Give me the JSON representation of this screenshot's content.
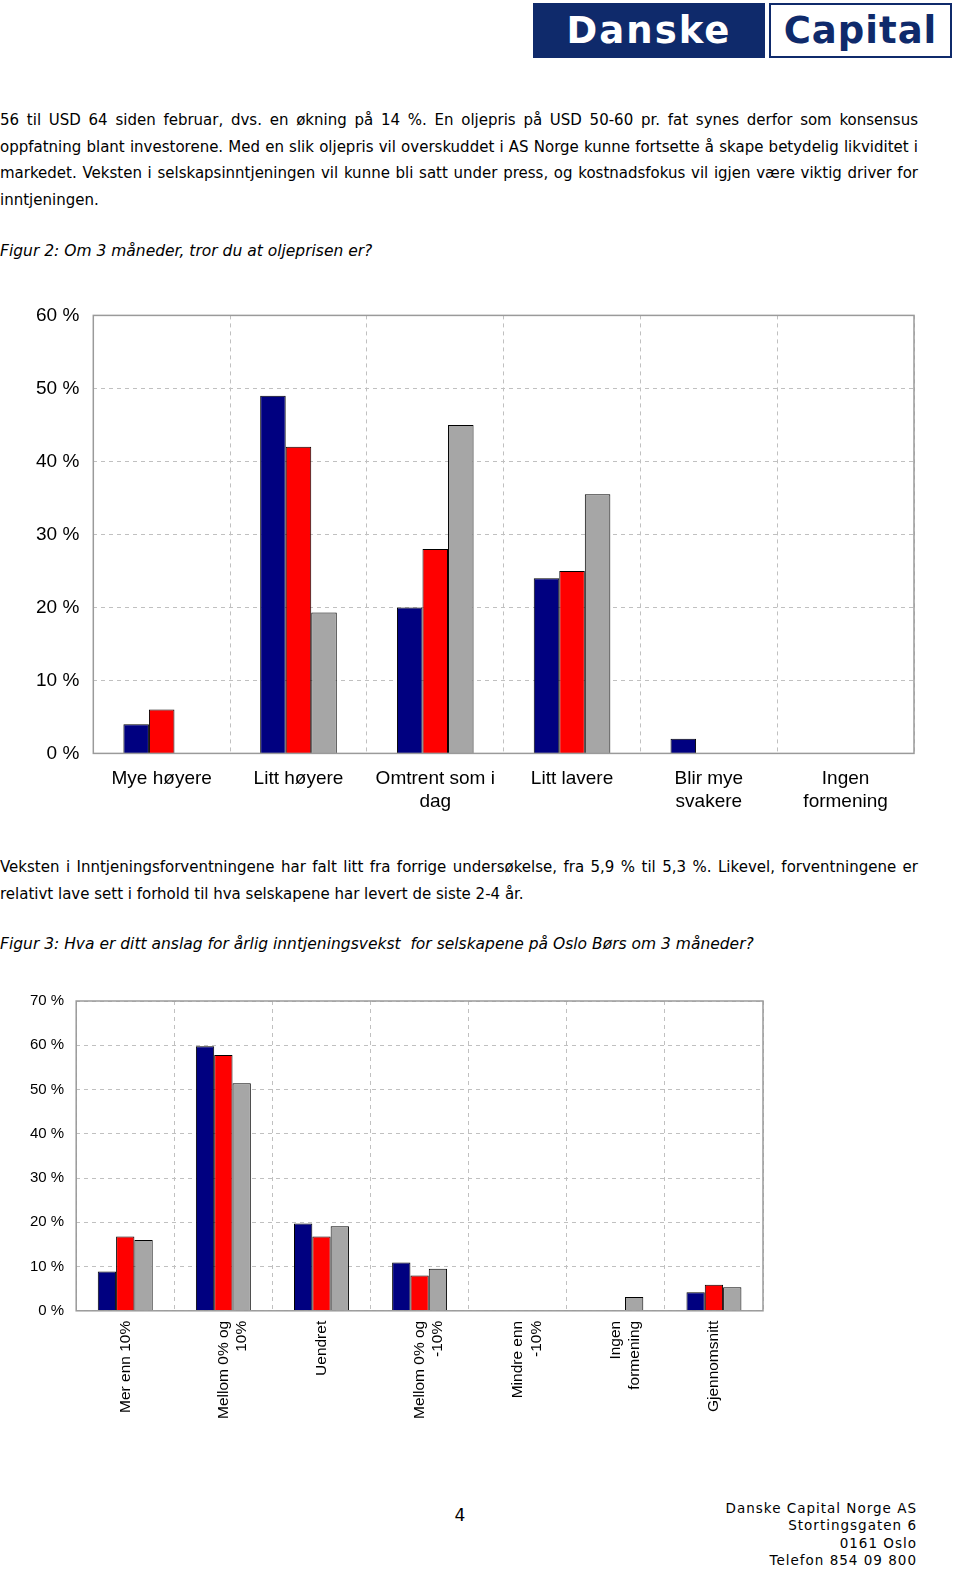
{
  "header": {
    "logo": [
      "Danske",
      "Capital"
    ]
  },
  "paragraphs": [
    "56 til USD 64 siden februar, dvs. en økning på 14 %. En oljepris på USD 50-60 pr. fat synes derfor som konsensus oppfatning blant investorene. Med en slik oljepris vil overskuddet i AS Norge kunne fortsette å skape betydelig likviditet i markedet. Veksten i selskapsinntjeningen vil kunne bli satt under press, og kostnadsfokus vil igjen være viktig driver for inntjeningen.",
    "Veksten i Inntjeningsforventningene har falt litt fra forrige undersøkelse, fra 5,9 % til 5,3 %. Likevel, forventningene er relativt lave sett i forhold til hva selskapene har levert de siste 2-4 år."
  ],
  "chart_data": [
    {
      "type": "bar",
      "title": "Figur 2: Om 3 måneder, tror du at oljeprisen er?",
      "categories": [
        "Mye høyere",
        "Litt høyere",
        "Omtrent som i dag",
        "Litt lavere",
        "Blir mye svakere",
        "Ingen formening"
      ],
      "series": [
        {
          "color": "#000080",
          "values": [
            4,
            49,
            20,
            24,
            2,
            0
          ]
        },
        {
          "color": "#ff0000",
          "values": [
            6,
            42,
            28,
            25,
            0,
            0
          ]
        },
        {
          "color": "#a6a6a6",
          "values": [
            0,
            19.3,
            45,
            35.5,
            0,
            0
          ]
        }
      ],
      "ylim": [
        0,
        60
      ],
      "yticks": [
        {
          "value": 0,
          "label": "0 %"
        },
        {
          "value": 10,
          "label": "10 %"
        },
        {
          "value": 20,
          "label": "20 %"
        },
        {
          "value": 30,
          "label": "30 %"
        },
        {
          "value": 40,
          "label": "40 %"
        },
        {
          "value": 50,
          "label": "50 %"
        },
        {
          "value": 60,
          "label": "60 %"
        }
      ],
      "grid": true
    },
    {
      "type": "bar",
      "title": "Figur 3: Hva er ditt anslag for årlig inntjeningsvekst  for selskapene på Oslo Børs om 3 måneder?",
      "categories": [
        "Mer enn 10%",
        "Mellom 0% og 10%",
        "Uendret",
        "Mellom 0% og -10%",
        "Mindre enn -10%",
        "Ingen formening",
        "Gjennomsnitt"
      ],
      "series": [
        {
          "color": "#000080",
          "values": [
            8.9,
            59.8,
            19.7,
            10.9,
            0,
            0,
            4.2
          ]
        },
        {
          "color": "#ff0000",
          "values": [
            16.8,
            57.8,
            16.8,
            8,
            0,
            0,
            5.9
          ]
        },
        {
          "color": "#a6a6a6",
          "values": [
            16,
            51.4,
            19.1,
            9.5,
            0,
            3.1,
            5.3
          ]
        }
      ],
      "ylim": [
        0,
        70
      ],
      "yticks": [
        {
          "value": 0,
          "label": "0 %"
        },
        {
          "value": 10,
          "label": "10 %"
        },
        {
          "value": 20,
          "label": "20 %"
        },
        {
          "value": 30,
          "label": "30 %"
        },
        {
          "value": 40,
          "label": "40 %"
        },
        {
          "value": 50,
          "label": "50 %"
        },
        {
          "value": 60,
          "label": "60 %"
        },
        {
          "value": 70,
          "label": "70 %"
        }
      ],
      "grid": true
    }
  ],
  "footer": {
    "page": "4",
    "address": [
      "Danske Capital Norge AS",
      "Stortingsgaten 6",
      "0161 Oslo",
      "Telefon 854 09 800"
    ]
  }
}
